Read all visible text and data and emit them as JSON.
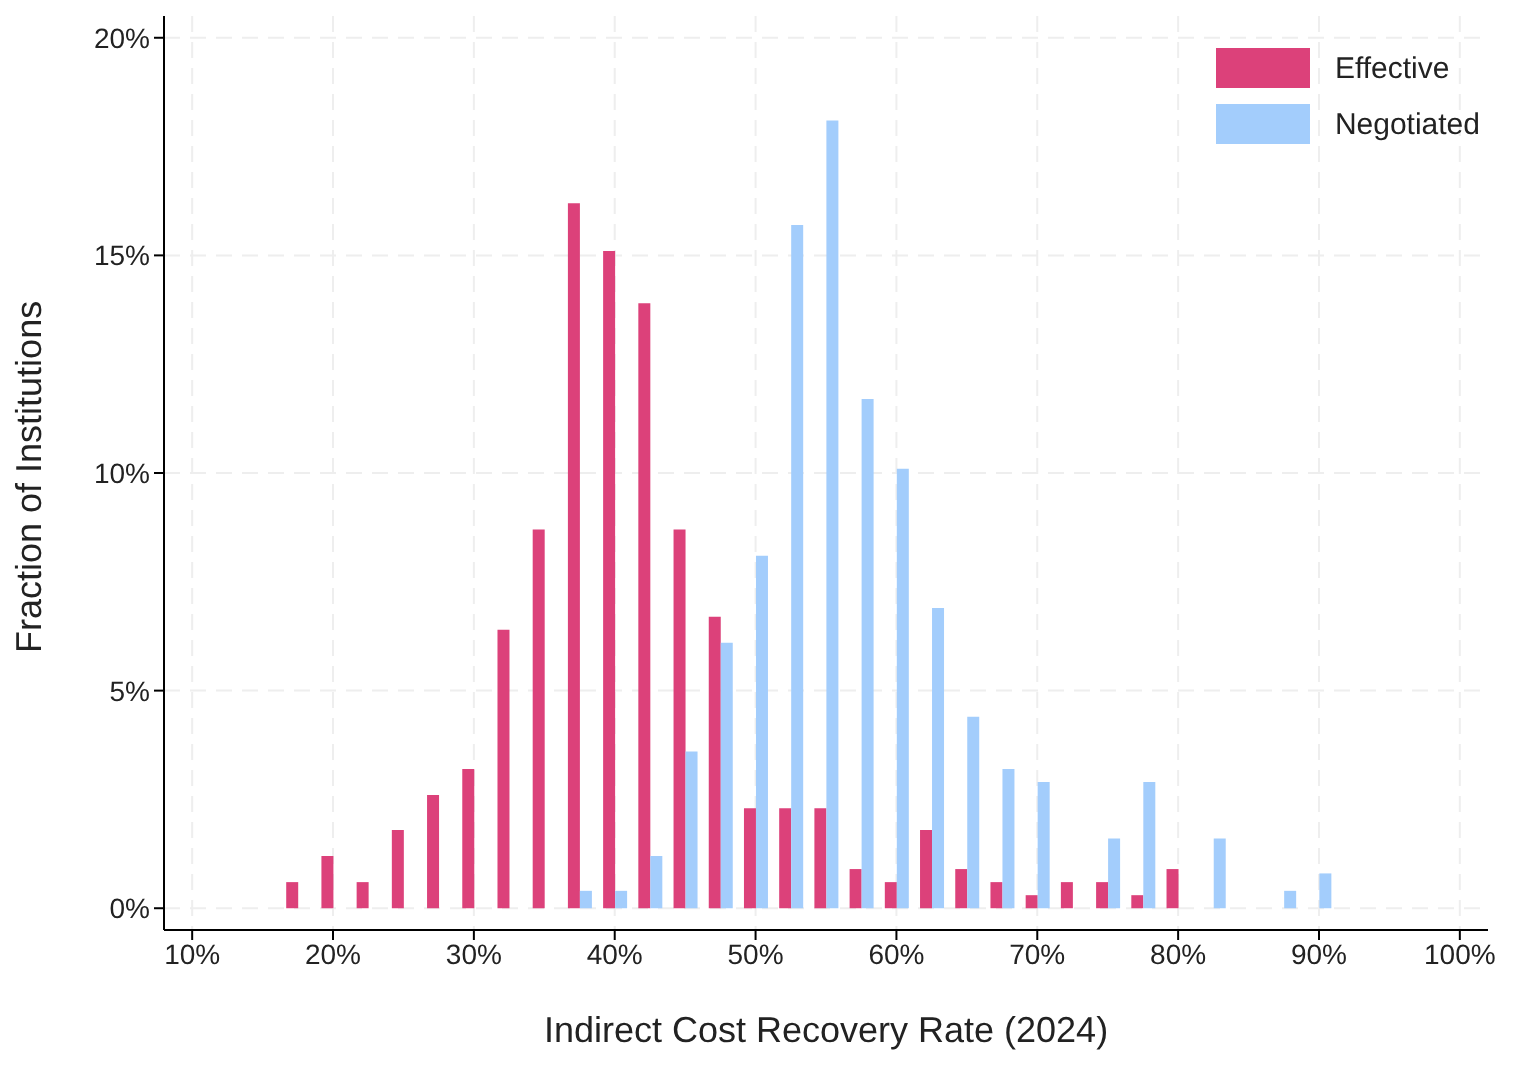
{
  "chart_data": {
    "type": "histogram",
    "xlabel": "Indirect Cost Recovery Rate (2024)",
    "ylabel": "Fraction of Institutions",
    "bins": [
      16.25,
      18.75,
      21.25,
      23.75,
      26.25,
      28.75,
      31.25,
      33.75,
      36.25,
      38.75,
      41.25,
      43.75,
      46.25,
      48.75,
      51.25,
      53.75,
      56.25,
      58.75,
      61.25,
      63.75,
      66.25,
      68.75,
      71.25,
      73.75,
      76.25,
      78.75,
      81.25,
      83.75,
      86.25,
      88.75,
      91.25,
      93.75
    ],
    "series": [
      {
        "name": "Effective",
        "color": "#dc417a",
        "values": [
          0.6,
          1.2,
          0.6,
          1.8,
          2.6,
          3.2,
          6.4,
          8.7,
          16.2,
          15.1,
          13.9,
          8.7,
          6.7,
          2.3,
          2.3,
          2.3,
          0.9,
          0.6,
          1.8,
          0.9,
          0.6,
          0.3,
          0.6,
          0.6,
          0.3,
          0.9,
          0,
          0,
          0,
          0,
          0
        ]
      },
      {
        "name": "Negotiated",
        "color": "#a3cdfc",
        "values": [
          0,
          0,
          0,
          0,
          0,
          0,
          0,
          0,
          0.4,
          0.4,
          1.2,
          3.6,
          6.1,
          8.1,
          15.7,
          18.1,
          11.7,
          10.1,
          6.9,
          4.4,
          3.2,
          2.9,
          0,
          1.6,
          2.9,
          0,
          1.6,
          0,
          0.4,
          0.8,
          0
        ]
      }
    ],
    "xlim": [
      8,
      102
    ],
    "xticks": [
      {
        "value": 10,
        "label": "10%"
      },
      {
        "value": 20,
        "label": "20%"
      },
      {
        "value": 30,
        "label": "30%"
      },
      {
        "value": 40,
        "label": "40%"
      },
      {
        "value": 50,
        "label": "50%"
      },
      {
        "value": 60,
        "label": "60%"
      },
      {
        "value": 70,
        "label": "70%"
      },
      {
        "value": 80,
        "label": "80%"
      },
      {
        "value": 90,
        "label": "90%"
      },
      {
        "value": 100,
        "label": "100%"
      }
    ],
    "ylim": [
      -0.5,
      20.5
    ],
    "yticks": [
      {
        "value": 0,
        "label": "0%"
      },
      {
        "value": 5,
        "label": "5%"
      },
      {
        "value": 10,
        "label": "10%"
      },
      {
        "value": 15,
        "label": "15%"
      },
      {
        "value": 20,
        "label": "20%"
      }
    ],
    "grid": true,
    "legend": "top right"
  }
}
